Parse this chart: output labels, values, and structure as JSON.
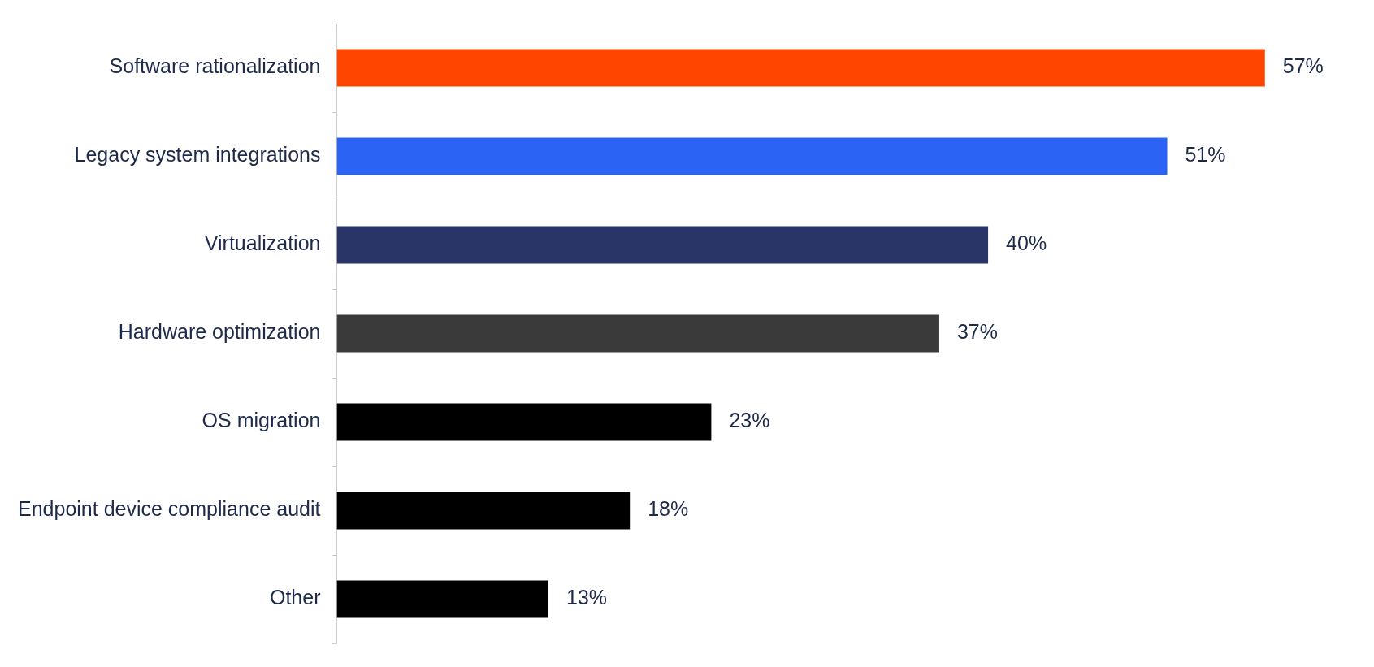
{
  "chart_data": {
    "type": "bar",
    "orientation": "horizontal",
    "tick_labels": "y",
    "grid": false,
    "legend": false,
    "categories": [
      "Software rationalization",
      "Legacy system integrations",
      "Virtualization",
      "Hardware optimization",
      "OS migration",
      "Endpoint device compliance audit",
      "Other"
    ],
    "values": [
      57,
      51,
      40,
      37,
      23,
      18,
      13
    ],
    "colors": [
      "#ff4500",
      "#2b63f4",
      "#283566",
      "#3a3a3a",
      "#000000",
      "#000000",
      "#000000"
    ],
    "value_labels": [
      "57%",
      "51%",
      "40%",
      "37%",
      "23%",
      "18%",
      "13%"
    ]
  }
}
